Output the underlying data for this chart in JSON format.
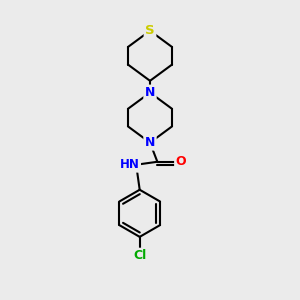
{
  "background_color": "#ebebeb",
  "atom_colors": {
    "S": "#cccc00",
    "N": "#0000ff",
    "O": "#ff0000",
    "Cl": "#00aa00",
    "C": "#000000",
    "H": "#555555"
  },
  "bond_color": "#000000",
  "bond_width": 1.5,
  "figsize": [
    3.0,
    3.0
  ],
  "dpi": 100,
  "xlim": [
    0,
    10
  ],
  "ylim": [
    0,
    10
  ]
}
